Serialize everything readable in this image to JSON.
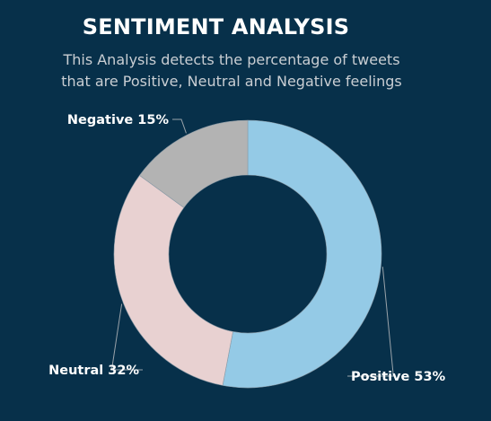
{
  "chart_data": {
    "type": "pie",
    "title": "SENTIMENT ANALYSIS",
    "subtitle_lines": [
      "This Analysis detects the percentage of tweets",
      "that are Positive, Neutral and Negative feelings"
    ],
    "donut": true,
    "categories": [
      "Positive",
      "Neutral",
      "Negative"
    ],
    "values": [
      53,
      32,
      15
    ],
    "colors": [
      "#94cae6",
      "#e8d1d1",
      "#b3b3b3"
    ],
    "data_labels": [
      "Positive 53%",
      "Neutral 32%",
      "Negative 15%"
    ]
  }
}
